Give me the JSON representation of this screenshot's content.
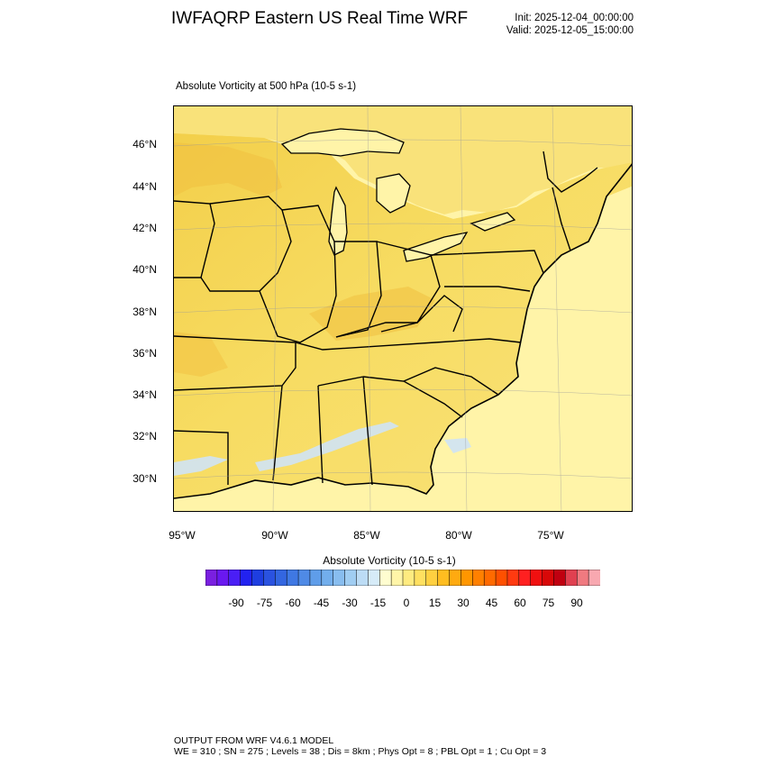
{
  "header": {
    "title": "IWFAQRP Eastern US Real Time WRF",
    "init": "Init: 2025-12-04_00:00:00",
    "valid": "Valid: 2025-12-05_15:00:00"
  },
  "panel": {
    "subtitle": "Absolute Vorticity at 500 hPa   (10-5 s-1)"
  },
  "map": {
    "lat_labels": [
      "46°N",
      "44°N",
      "42°N",
      "40°N",
      "38°N",
      "36°N",
      "34°N",
      "32°N",
      "30°N"
    ],
    "lon_labels": [
      "95°W",
      "90°W",
      "85°W",
      "80°W",
      "75°W"
    ],
    "land_fill": "#f7e070",
    "ocean_fill": "#fff5b0"
  },
  "colorbar": {
    "title": "Absolute Vorticity  (10-5 s-1)",
    "tick_labels": [
      "-90",
      "-75",
      "-60",
      "-45",
      "-30",
      "-15",
      "0",
      "15",
      "30",
      "45",
      "60",
      "75",
      "90"
    ],
    "colors": [
      "#7a1fe0",
      "#6a18f0",
      "#4a1ef5",
      "#2222f0",
      "#1e3ee0",
      "#2a52e0",
      "#3366e0",
      "#3f78e3",
      "#4f8ae6",
      "#5f9de9",
      "#72aeec",
      "#88bdef",
      "#a0cdf2",
      "#bcdcf5",
      "#d6ebf8",
      "#fffdd0",
      "#fff5a8",
      "#ffeb80",
      "#ffe060",
      "#ffd040",
      "#ffbd20",
      "#ffaa10",
      "#ff9600",
      "#ff8000",
      "#ff6a00",
      "#ff5000",
      "#ff3a10",
      "#ff2020",
      "#f01010",
      "#d80808",
      "#c00010",
      "#e04050",
      "#f07a80",
      "#f8a8b0"
    ]
  },
  "footer": {
    "line1": "OUTPUT FROM WRF V4.6.1 MODEL",
    "line2": "WE = 310 ; SN = 275 ; Levels = 38 ; Dis = 8km ; Phys Opt = 8 ; PBL Opt = 1 ; Cu Opt = 3"
  }
}
